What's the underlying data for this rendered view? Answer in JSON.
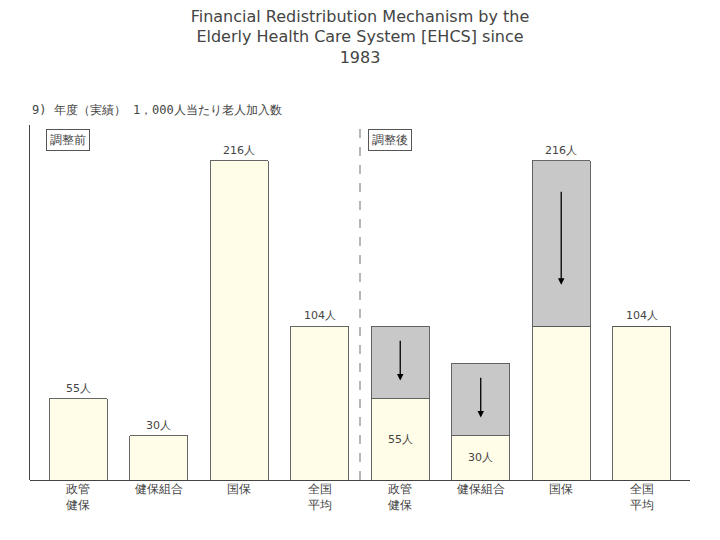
{
  "chart_data": {
    "type": "bar",
    "title": "Financial Redistribution Mechanism by the\nElderly Health Care System [EHCS] since\n1983",
    "subtitle": "9) 年度（実績） 1，000人当たり老人加入数",
    "categories": [
      "政管\n健保",
      "健保組合",
      "国保",
      "全国\n平均",
      "政管\n健保",
      "健保組合",
      "国保",
      "全国\n平均"
    ],
    "stacked": true,
    "series": [
      {
        "color": "#FFFCE8",
        "values": [
          55,
          30,
          216,
          104,
          55,
          30,
          104,
          104
        ],
        "data_labels": true,
        "value_labels": [
          "55人",
          "30人",
          "216人",
          "104人",
          "55人",
          "30人",
          null,
          "104人"
        ]
      },
      {
        "color": "#C8C8C8",
        "values": [
          null,
          null,
          null,
          null,
          49,
          49,
          112,
          0
        ]
      }
    ],
    "annotations": [
      {
        "text": "調整前",
        "x": 0
      },
      {
        "text": "調整後",
        "x": 4
      },
      {
        "text": "216人",
        "x": 6,
        "y": 216
      }
    ],
    "ylim": [
      0,
      240
    ],
    "grid": false,
    "tick_labels": "x"
  }
}
